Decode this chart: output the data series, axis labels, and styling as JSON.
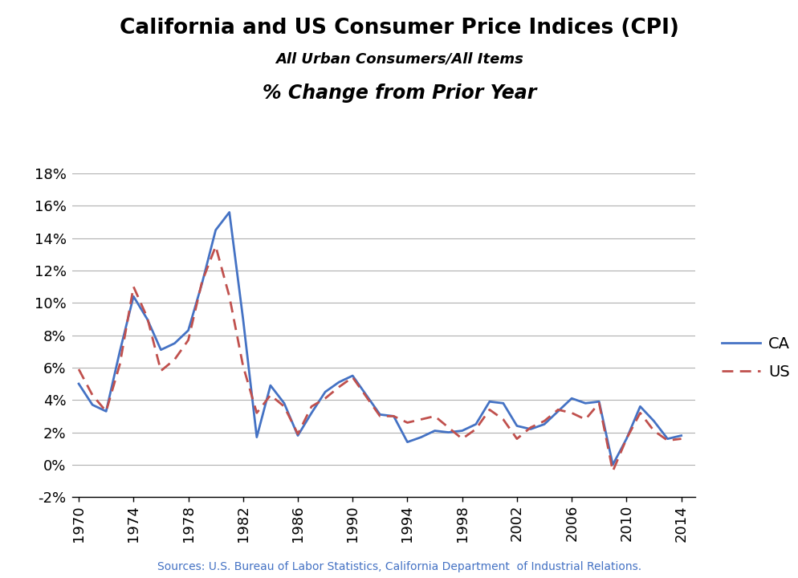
{
  "title1": "California and US Consumer Price Indices (CPI)",
  "title2": "All Urban Consumers/All Items",
  "title3": "% Change from Prior Year",
  "source": "Sources: U.S. Bureau of Labor Statistics, California Department  of Industrial Relations.",
  "years": [
    1970,
    1971,
    1972,
    1973,
    1974,
    1975,
    1976,
    1977,
    1978,
    1979,
    1980,
    1981,
    1982,
    1983,
    1984,
    1985,
    1986,
    1987,
    1988,
    1989,
    1990,
    1991,
    1992,
    1993,
    1994,
    1995,
    1996,
    1997,
    1998,
    1999,
    2000,
    2001,
    2002,
    2003,
    2004,
    2005,
    2006,
    2007,
    2008,
    2009,
    2010,
    2011,
    2012,
    2013,
    2014
  ],
  "ca": [
    5.0,
    3.7,
    3.3,
    7.0,
    10.4,
    9.0,
    7.1,
    7.5,
    8.3,
    11.2,
    14.5,
    15.6,
    9.0,
    1.7,
    4.9,
    3.8,
    1.8,
    3.2,
    4.5,
    5.1,
    5.5,
    4.3,
    3.1,
    3.0,
    1.4,
    1.7,
    2.1,
    2.0,
    2.1,
    2.5,
    3.9,
    3.8,
    2.4,
    2.2,
    2.5,
    3.3,
    4.1,
    3.8,
    3.9,
    0.0,
    1.6,
    3.6,
    2.7,
    1.6,
    1.8
  ],
  "us": [
    5.9,
    4.3,
    3.3,
    6.2,
    11.0,
    9.1,
    5.8,
    6.5,
    7.7,
    11.3,
    13.5,
    10.4,
    6.1,
    3.2,
    4.3,
    3.6,
    1.9,
    3.6,
    4.1,
    4.8,
    5.4,
    4.2,
    3.0,
    3.0,
    2.6,
    2.8,
    3.0,
    2.3,
    1.6,
    2.2,
    3.4,
    2.8,
    1.6,
    2.3,
    2.7,
    3.4,
    3.2,
    2.8,
    3.8,
    -0.4,
    1.6,
    3.2,
    2.1,
    1.5,
    1.6
  ],
  "ca_color": "#4472C4",
  "us_color": "#C0504D",
  "ylim": [
    -2,
    18
  ],
  "yticks": [
    -2,
    0,
    2,
    4,
    6,
    8,
    10,
    12,
    14,
    16,
    18
  ],
  "xticks": [
    1970,
    1974,
    1978,
    1982,
    1986,
    1990,
    1994,
    1998,
    2002,
    2006,
    2010,
    2014
  ],
  "background_color": "#ffffff",
  "grid_color": "#b0b0b0"
}
